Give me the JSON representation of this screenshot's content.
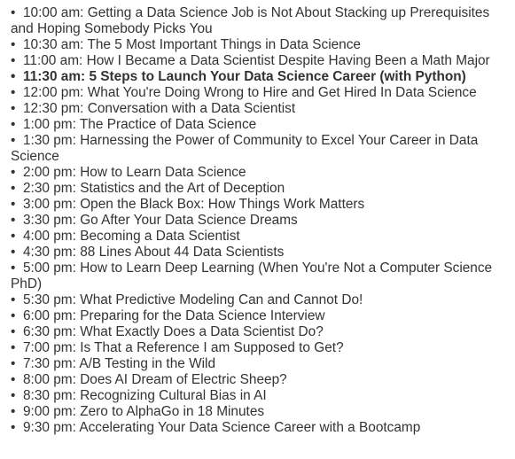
{
  "schedule": {
    "items": [
      {
        "time": "10:00 am",
        "title": "Getting a Data Science Job is Not About Stacking up Prerequisites and Hoping Somebody Picks You",
        "highlight": false
      },
      {
        "time": "10:30 am",
        "title": "The 5 Most Important Things in Data Science",
        "highlight": false
      },
      {
        "time": "11:00 am",
        "title": "How I Became a Data Scientist Despite Having Been a Math Major",
        "highlight": false
      },
      {
        "time": "11:30 am",
        "title": "5 Steps to Launch Your Data Science Career (with Python)",
        "highlight": true
      },
      {
        "time": "12:00 pm",
        "title": "What You're Doing Wrong to Hire and Get Hired In Data Science",
        "highlight": false
      },
      {
        "time": "12:30 pm",
        "title": "Conversation with a Data Scientist",
        "highlight": false
      },
      {
        "time": "1:00 pm",
        "title": "The Practice of Data Science",
        "highlight": false
      },
      {
        "time": "1:30 pm",
        "title": "Harnessing the Power of Community to Excel Your Career in Data Science",
        "highlight": false
      },
      {
        "time": "2:00 pm",
        "title": "How to Learn Data Science",
        "highlight": false
      },
      {
        "time": "2:30 pm",
        "title": "Statistics and the Art of Deception",
        "highlight": false
      },
      {
        "time": "3:00 pm",
        "title": "Open the Black Box: How Things Work Matters",
        "highlight": false
      },
      {
        "time": "3:30 pm",
        "title": "Go After Your Data Science Dreams",
        "highlight": false
      },
      {
        "time": "4:00 pm",
        "title": "Becoming a Data Scientist",
        "highlight": false
      },
      {
        "time": "4:30 pm",
        "title": "88 Lines About 44 Data Scientists",
        "highlight": false
      },
      {
        "time": "5:00 pm",
        "title": "How to Learn Deep Learning (When You're Not a Computer Science PhD)",
        "highlight": false
      },
      {
        "time": "5:30 pm",
        "title": "What Predictive Modeling Can and Cannot Do!",
        "highlight": false
      },
      {
        "time": "6:00 pm",
        "title": "Preparing for the Data Science Interview",
        "highlight": false
      },
      {
        "time": "6:30 pm",
        "title": "What Exactly Does a Data Scientist Do?",
        "highlight": false
      },
      {
        "time": "7:00 pm",
        "title": "Is That a Reference I am Supposed to Get?",
        "highlight": false
      },
      {
        "time": "7:30 pm",
        "title": "A/B Testing in the Wild",
        "highlight": false
      },
      {
        "time": "8:00 pm",
        "title": "Does AI Dream of Electric Sheep?",
        "highlight": false
      },
      {
        "time": "8:30 pm",
        "title": "Recognizing Cultural Bias in AI",
        "highlight": false
      },
      {
        "time": "9:00 pm",
        "title": "Zero to AlphaGo in 18 Minutes",
        "highlight": false
      },
      {
        "time": "9:30 pm",
        "title": "Accelerating Your Data Science Career with a Bootcamp",
        "highlight": false
      }
    ],
    "separator": ": ",
    "bullet": "•"
  }
}
